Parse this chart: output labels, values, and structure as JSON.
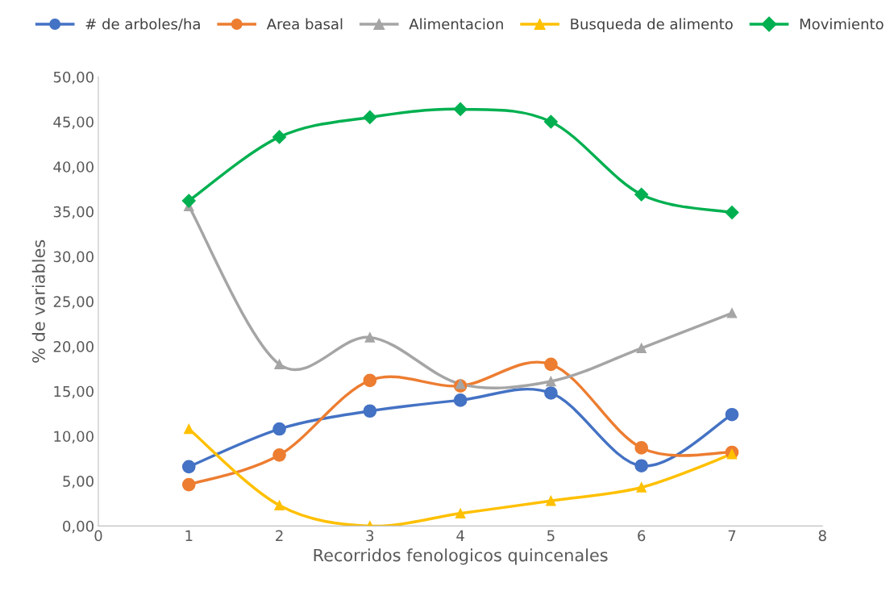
{
  "chart_data": {
    "type": "line",
    "xlabel": "Recorridos fenologicos quincenales",
    "ylabel": "% de variables",
    "x": [
      1,
      2,
      3,
      4,
      5,
      6,
      7
    ],
    "xlim": [
      0,
      8
    ],
    "xticks": [
      0,
      1,
      2,
      3,
      4,
      5,
      6,
      7,
      8
    ],
    "ylim": [
      0,
      50
    ],
    "yticks": [
      {
        "value": 0,
        "label": "0,00"
      },
      {
        "value": 5,
        "label": "5,00"
      },
      {
        "value": 10,
        "label": "10,00"
      },
      {
        "value": 15,
        "label": "15,00"
      },
      {
        "value": 20,
        "label": "20,00"
      },
      {
        "value": 25,
        "label": "25,00"
      },
      {
        "value": 30,
        "label": "30,00"
      },
      {
        "value": 35,
        "label": "35,00"
      },
      {
        "value": 40,
        "label": "40,00"
      },
      {
        "value": 45,
        "label": "45,00"
      },
      {
        "value": 50,
        "label": "50,00"
      }
    ],
    "grid": false,
    "legend": "top",
    "line_style": "solid",
    "series": [
      {
        "name": "# de arboles/ha",
        "color": "#4472c4",
        "marker": "circle",
        "values": [
          6.6,
          10.8,
          12.8,
          14.0,
          14.8,
          6.7,
          12.4
        ]
      },
      {
        "name": "Area basal",
        "color": "#ed7d31",
        "marker": "circle",
        "values": [
          4.6,
          7.9,
          16.2,
          15.6,
          18.0,
          8.7,
          8.2
        ]
      },
      {
        "name": "Alimentacion",
        "color": "#a5a5a5",
        "marker": "triangle",
        "values": [
          35.6,
          18.0,
          21.0,
          15.8,
          16.1,
          19.8,
          23.7
        ]
      },
      {
        "name": "Busqueda de alimento",
        "color": "#ffc000",
        "marker": "triangle",
        "values": [
          10.8,
          2.3,
          0.0,
          1.4,
          2.8,
          4.3,
          8.0
        ]
      },
      {
        "name": "Movimiento",
        "color": "#00b050",
        "marker": "diamond",
        "values": [
          36.2,
          43.3,
          45.5,
          46.4,
          45.0,
          36.9,
          34.9
        ]
      }
    ]
  }
}
